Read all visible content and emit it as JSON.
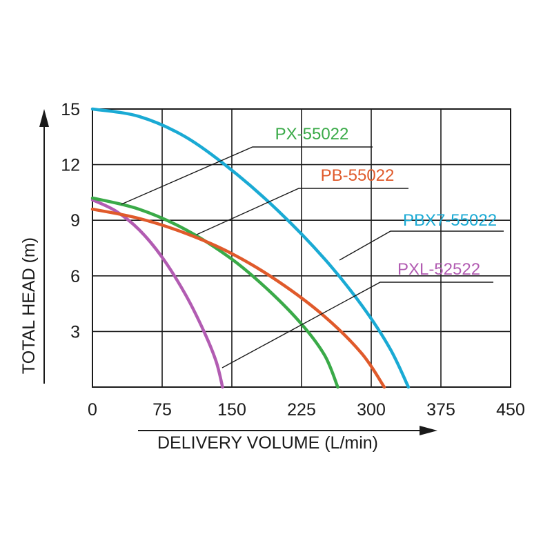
{
  "chart_data": {
    "type": "line",
    "title": "",
    "xlabel": "DELIVERY VOLUME (L/min)",
    "ylabel": "TOTAL HEAD (m)",
    "xlim": [
      0,
      450
    ],
    "ylim": [
      0,
      15
    ],
    "x_ticks": [
      "0",
      "75",
      "150",
      "225",
      "300",
      "375",
      "450"
    ],
    "y_ticks": [
      "3",
      "6",
      "9",
      "12",
      "15"
    ],
    "grid": true,
    "legend": "callout labels with leader lines",
    "series": [
      {
        "name": "PX-55022",
        "color": "#3aaa48",
        "x": [
          0,
          50,
          100,
          150,
          190,
          225,
          250,
          264
        ],
        "y": [
          10.2,
          9.6,
          8.5,
          6.9,
          5.2,
          3.4,
          1.7,
          0
        ]
      },
      {
        "name": "PB-55022",
        "color": "#e05a2b",
        "x": [
          0,
          50,
          100,
          150,
          200,
          250,
          290,
          314
        ],
        "y": [
          9.6,
          9.1,
          8.3,
          7.2,
          5.7,
          3.8,
          1.8,
          0
        ]
      },
      {
        "name": "PBX7-55022",
        "color": "#1aaad4",
        "x": [
          0,
          50,
          100,
          150,
          200,
          250,
          290,
          320,
          340
        ],
        "y": [
          15,
          14.6,
          13.5,
          11.7,
          9.5,
          6.9,
          4.4,
          2.1,
          0
        ]
      },
      {
        "name": "PXL-52522",
        "color": "#b25cb2",
        "x": [
          0,
          25,
          50,
          75,
          100,
          120,
          133,
          140
        ],
        "y": [
          10.1,
          9.5,
          8.5,
          7.0,
          5.0,
          3.0,
          1.4,
          0
        ]
      }
    ]
  }
}
